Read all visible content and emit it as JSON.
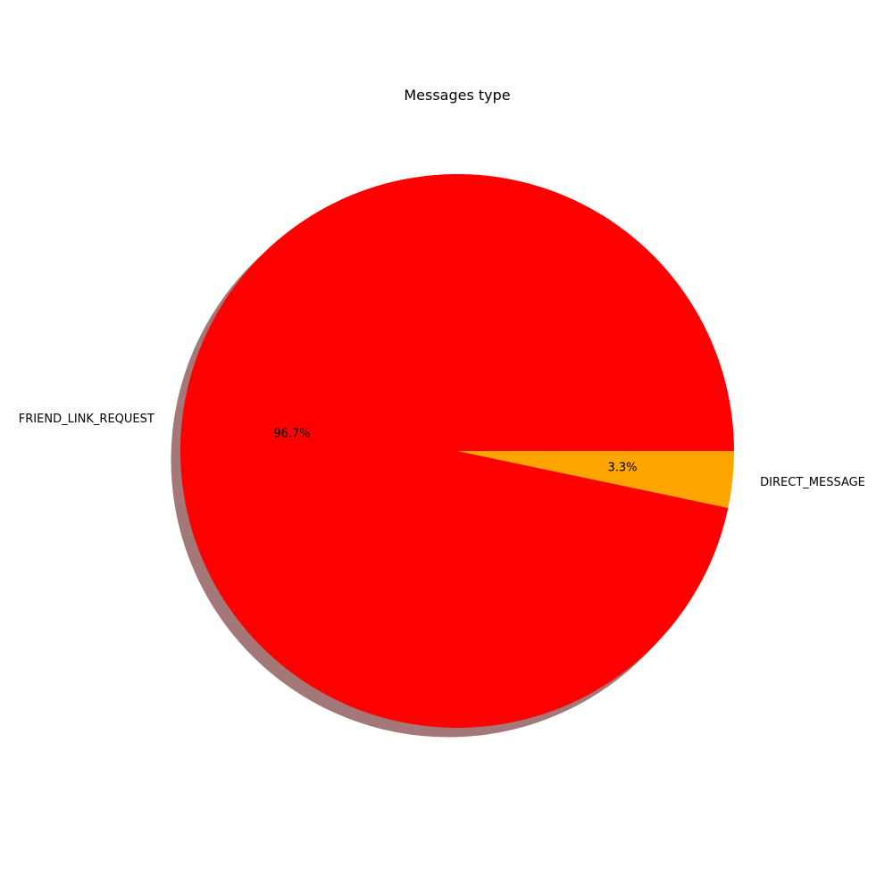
{
  "chart_data": {
    "type": "pie",
    "title": "Messages type",
    "slices": [
      {
        "label": "FRIEND_LINK_REQUEST",
        "value": 96.7,
        "pct_label": "96.7%",
        "color": "#ff0000"
      },
      {
        "label": "DIRECT_MESSAGE",
        "value": 3.3,
        "pct_label": "3.3%",
        "color": "#ffa500"
      }
    ],
    "shadow": true,
    "shadow_color": "#a47878",
    "legend": "none",
    "start_angle_deg": 0,
    "direction": "counterclockwise"
  }
}
